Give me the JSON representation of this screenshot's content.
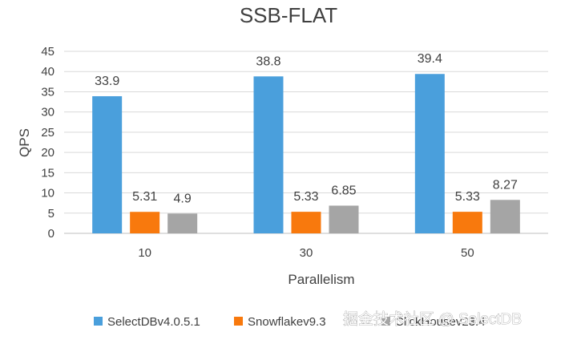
{
  "chart_data": {
    "type": "bar",
    "title": "SSB-FLAT",
    "xlabel": "Parallelism",
    "ylabel": "QPS",
    "categories": [
      "10",
      "30",
      "50"
    ],
    "ylim": [
      0,
      45
    ],
    "yticks": [
      0,
      5,
      10,
      15,
      20,
      25,
      30,
      35,
      40,
      45
    ],
    "grid": true,
    "legend_position": "bottom",
    "series": [
      {
        "name": "SelectDBv4.0.5.1",
        "color": "#4a9fdc",
        "values": [
          33.9,
          38.8,
          39.4
        ],
        "labels": [
          "33.9",
          "38.8",
          "39.4"
        ]
      },
      {
        "name": "Snowflakev9.3",
        "color": "#f8790d",
        "values": [
          5.31,
          5.33,
          5.33
        ],
        "labels": [
          "5.31",
          "5.33",
          "5.33"
        ]
      },
      {
        "name": "ClickHousev23.4",
        "color": "#a5a5a5",
        "values": [
          4.9,
          6.85,
          8.27
        ],
        "labels": [
          "4.9",
          "6.85",
          "8.27"
        ]
      }
    ]
  },
  "watermark": "掘金技术社区 @ SelectDB"
}
